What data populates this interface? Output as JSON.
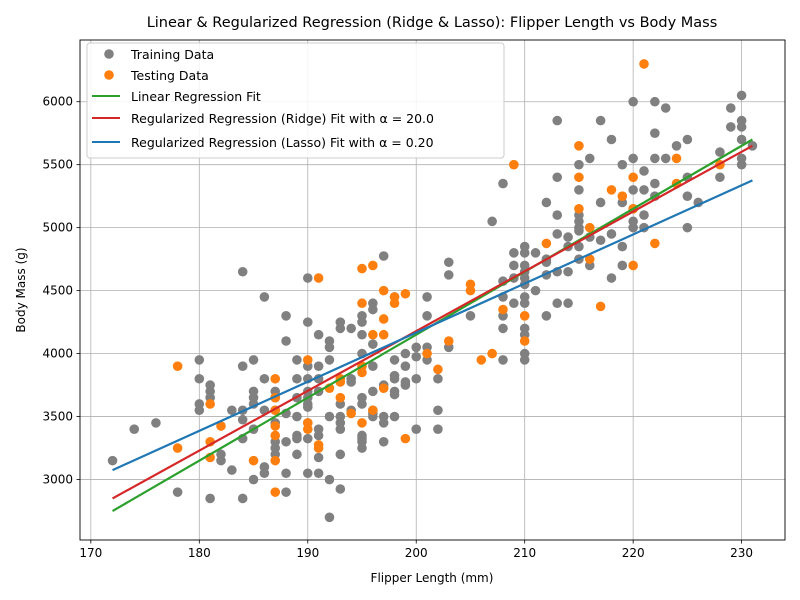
{
  "chart_data": {
    "type": "scatter",
    "title": "Linear & Regularized Regression (Ridge & Lasso): Flipper Length vs Body Mass",
    "xlabel": "Flipper Length (mm)",
    "ylabel": "Body Mass (g)",
    "xlim": [
      169,
      234
    ],
    "ylim": [
      2520,
      6490
    ],
    "x_ticks": [
      "170",
      "180",
      "190",
      "200",
      "210",
      "220",
      "230"
    ],
    "y_ticks": [
      "3000",
      "3500",
      "4000",
      "4500",
      "5000",
      "5500",
      "6000"
    ],
    "grid": true,
    "legend_position": "top-left",
    "colors": {
      "training": "#808080",
      "testing": "#ff7f0e",
      "linear": "#2ca02c",
      "ridge": "#d62728",
      "lasso": "#1f77b4"
    },
    "series": [
      {
        "name": "Training Data",
        "kind": "scatter",
        "points": [
          [
            172,
            3150
          ],
          [
            174,
            3400
          ],
          [
            176,
            3450
          ],
          [
            178,
            2900
          ],
          [
            180,
            3950
          ],
          [
            180,
            3800
          ],
          [
            180,
            3600
          ],
          [
            180,
            3550
          ],
          [
            181,
            3750
          ],
          [
            181,
            3700
          ],
          [
            181,
            3650
          ],
          [
            181,
            2850
          ],
          [
            182,
            3200
          ],
          [
            182,
            3150
          ],
          [
            183,
            3550
          ],
          [
            183,
            3075
          ],
          [
            184,
            4650
          ],
          [
            184,
            3900
          ],
          [
            184,
            3550
          ],
          [
            184,
            3475
          ],
          [
            184,
            3325
          ],
          [
            184,
            2850
          ],
          [
            185,
            3950
          ],
          [
            185,
            3700
          ],
          [
            185,
            3650
          ],
          [
            185,
            3600
          ],
          [
            185,
            3400
          ],
          [
            185,
            3000
          ],
          [
            186,
            4450
          ],
          [
            186,
            3800
          ],
          [
            186,
            3550
          ],
          [
            186,
            3100
          ],
          [
            186,
            3050
          ],
          [
            187,
            3700
          ],
          [
            187,
            3650
          ],
          [
            187,
            3550
          ],
          [
            187,
            3450
          ],
          [
            187,
            3300
          ],
          [
            187,
            3250
          ],
          [
            187,
            3200
          ],
          [
            188,
            4300
          ],
          [
            188,
            4100
          ],
          [
            188,
            3525
          ],
          [
            188,
            3300
          ],
          [
            188,
            3050
          ],
          [
            188,
            2900
          ],
          [
            189,
            3950
          ],
          [
            189,
            3800
          ],
          [
            189,
            3650
          ],
          [
            189,
            3500
          ],
          [
            189,
            3350
          ],
          [
            189,
            3325
          ],
          [
            189,
            3200
          ],
          [
            190,
            4600
          ],
          [
            190,
            4250
          ],
          [
            190,
            3900
          ],
          [
            190,
            3800
          ],
          [
            190,
            3700
          ],
          [
            190,
            3650
          ],
          [
            190,
            3600
          ],
          [
            190,
            3575
          ],
          [
            190,
            3450
          ],
          [
            190,
            3325
          ],
          [
            190,
            3050
          ],
          [
            191,
            4150
          ],
          [
            191,
            3900
          ],
          [
            191,
            3800
          ],
          [
            191,
            3700
          ],
          [
            191,
            3400
          ],
          [
            191,
            3350
          ],
          [
            191,
            3175
          ],
          [
            191,
            3050
          ],
          [
            192,
            4100
          ],
          [
            192,
            4050
          ],
          [
            192,
            3950
          ],
          [
            192,
            3500
          ],
          [
            192,
            3000
          ],
          [
            192,
            2700
          ],
          [
            193,
            4250
          ],
          [
            193,
            4200
          ],
          [
            193,
            3600
          ],
          [
            193,
            3500
          ],
          [
            193,
            3450
          ],
          [
            193,
            3400
          ],
          [
            193,
            3200
          ],
          [
            193,
            2925
          ],
          [
            194,
            4200
          ],
          [
            194,
            3800
          ],
          [
            194,
            3775
          ],
          [
            194,
            3550
          ],
          [
            195,
            4300
          ],
          [
            195,
            4250
          ],
          [
            195,
            4150
          ],
          [
            195,
            4000
          ],
          [
            195,
            3650
          ],
          [
            195,
            3600
          ],
          [
            195,
            3350
          ],
          [
            195,
            3325
          ],
          [
            195,
            3300
          ],
          [
            195,
            3250
          ],
          [
            196,
            4400
          ],
          [
            196,
            4350
          ],
          [
            196,
            4075
          ],
          [
            196,
            3900
          ],
          [
            196,
            3700
          ],
          [
            196,
            3550
          ],
          [
            196,
            3500
          ],
          [
            196,
            3525
          ],
          [
            197,
            4775
          ],
          [
            197,
            3750
          ],
          [
            197,
            3500
          ],
          [
            197,
            3450
          ],
          [
            197,
            3300
          ],
          [
            198,
            4450
          ],
          [
            198,
            3950
          ],
          [
            198,
            3825
          ],
          [
            198,
            3800
          ],
          [
            198,
            3700
          ],
          [
            198,
            3675
          ],
          [
            198,
            3500
          ],
          [
            199,
            4000
          ],
          [
            199,
            3900
          ],
          [
            199,
            3775
          ],
          [
            199,
            3750
          ],
          [
            200,
            4050
          ],
          [
            200,
            3975
          ],
          [
            200,
            3800
          ],
          [
            200,
            3400
          ],
          [
            201,
            4450
          ],
          [
            201,
            4300
          ],
          [
            201,
            4050
          ],
          [
            201,
            3950
          ],
          [
            202,
            3800
          ],
          [
            202,
            3550
          ],
          [
            202,
            3400
          ],
          [
            203,
            4725
          ],
          [
            203,
            4625
          ],
          [
            203,
            4050
          ],
          [
            205,
            4300
          ],
          [
            207,
            5050
          ],
          [
            208,
            5350
          ],
          [
            208,
            4575
          ],
          [
            208,
            4450
          ],
          [
            208,
            4300
          ],
          [
            208,
            4200
          ],
          [
            208,
            3950
          ],
          [
            209,
            4800
          ],
          [
            209,
            4700
          ],
          [
            209,
            4400
          ],
          [
            209,
            4600
          ],
          [
            210,
            4850
          ],
          [
            210,
            4800
          ],
          [
            210,
            4700
          ],
          [
            210,
            4650
          ],
          [
            210,
            4600
          ],
          [
            210,
            4550
          ],
          [
            210,
            4450
          ],
          [
            210,
            4400
          ],
          [
            210,
            4200
          ],
          [
            210,
            4150
          ],
          [
            210,
            4000
          ],
          [
            210,
            3950
          ],
          [
            211,
            4800
          ],
          [
            211,
            4500
          ],
          [
            212,
            5200
          ],
          [
            212,
            4750
          ],
          [
            212,
            4725
          ],
          [
            212,
            4625
          ],
          [
            212,
            4300
          ],
          [
            213,
            5850
          ],
          [
            213,
            5400
          ],
          [
            213,
            5100
          ],
          [
            213,
            4950
          ],
          [
            213,
            4650
          ],
          [
            213,
            4400
          ],
          [
            214,
            4925
          ],
          [
            214,
            4850
          ],
          [
            214,
            4650
          ],
          [
            214,
            4400
          ],
          [
            215,
            5500
          ],
          [
            215,
            5300
          ],
          [
            215,
            5100
          ],
          [
            215,
            5050
          ],
          [
            215,
            5000
          ],
          [
            215,
            4975
          ],
          [
            215,
            4850
          ],
          [
            215,
            4750
          ],
          [
            216,
            5550
          ],
          [
            216,
            4925
          ],
          [
            216,
            4700
          ],
          [
            217,
            5850
          ],
          [
            217,
            5200
          ],
          [
            217,
            4900
          ],
          [
            218,
            5700
          ],
          [
            218,
            4950
          ],
          [
            218,
            4600
          ],
          [
            219,
            5500
          ],
          [
            219,
            5200
          ],
          [
            219,
            4850
          ],
          [
            219,
            4700
          ],
          [
            220,
            6000
          ],
          [
            220,
            5550
          ],
          [
            220,
            5300
          ],
          [
            220,
            5050
          ],
          [
            220,
            5000
          ],
          [
            220,
            5150
          ],
          [
            221,
            5450
          ],
          [
            221,
            5300
          ],
          [
            221,
            5100
          ],
          [
            221,
            5000
          ],
          [
            222,
            6000
          ],
          [
            222,
            5750
          ],
          [
            222,
            5550
          ],
          [
            222,
            5350
          ],
          [
            222,
            5250
          ],
          [
            223,
            5950
          ],
          [
            223,
            5550
          ],
          [
            224,
            5650
          ],
          [
            225,
            5700
          ],
          [
            225,
            5400
          ],
          [
            225,
            5250
          ],
          [
            225,
            5000
          ],
          [
            226,
            5200
          ],
          [
            228,
            5600
          ],
          [
            228,
            5400
          ],
          [
            229,
            5950
          ],
          [
            229,
            5800
          ],
          [
            230,
            6050
          ],
          [
            230,
            5850
          ],
          [
            230,
            5800
          ],
          [
            230,
            5700
          ],
          [
            230,
            5550
          ],
          [
            230,
            5500
          ],
          [
            231,
            5650
          ]
        ]
      },
      {
        "name": "Testing Data",
        "kind": "scatter",
        "points": [
          [
            178,
            3900
          ],
          [
            178,
            3250
          ],
          [
            181,
            3600
          ],
          [
            181,
            3300
          ],
          [
            181,
            3175
          ],
          [
            182,
            3425
          ],
          [
            185,
            3150
          ],
          [
            187,
            3800
          ],
          [
            187,
            3650
          ],
          [
            187,
            3550
          ],
          [
            187,
            3425
          ],
          [
            187,
            3350
          ],
          [
            187,
            3150
          ],
          [
            187,
            2900
          ],
          [
            190,
            3950
          ],
          [
            190,
            3450
          ],
          [
            190,
            3400
          ],
          [
            191,
            4600
          ],
          [
            191,
            3275
          ],
          [
            191,
            3250
          ],
          [
            192,
            3725
          ],
          [
            193,
            3800
          ],
          [
            193,
            3775
          ],
          [
            193,
            3650
          ],
          [
            194,
            3525
          ],
          [
            195,
            4675
          ],
          [
            195,
            4400
          ],
          [
            195,
            3900
          ],
          [
            195,
            3850
          ],
          [
            195,
            3450
          ],
          [
            196,
            4700
          ],
          [
            196,
            4150
          ],
          [
            196,
            3550
          ],
          [
            197,
            4500
          ],
          [
            197,
            4275
          ],
          [
            197,
            4150
          ],
          [
            197,
            3725
          ],
          [
            198,
            4450
          ],
          [
            198,
            4400
          ],
          [
            199,
            4475
          ],
          [
            199,
            3325
          ],
          [
            201,
            4000
          ],
          [
            202,
            3875
          ],
          [
            203,
            4100
          ],
          [
            205,
            4550
          ],
          [
            205,
            4500
          ],
          [
            206,
            3950
          ],
          [
            207,
            4000
          ],
          [
            208,
            4350
          ],
          [
            209,
            5500
          ],
          [
            210,
            4300
          ],
          [
            210,
            4100
          ],
          [
            212,
            4875
          ],
          [
            215,
            5650
          ],
          [
            215,
            5400
          ],
          [
            215,
            5150
          ],
          [
            216,
            5000
          ],
          [
            216,
            4750
          ],
          [
            217,
            4375
          ],
          [
            218,
            5300
          ],
          [
            219,
            5250
          ],
          [
            220,
            5400
          ],
          [
            220,
            5150
          ],
          [
            220,
            4700
          ],
          [
            221,
            6300
          ],
          [
            222,
            4875
          ],
          [
            224,
            5550
          ],
          [
            224,
            5350
          ],
          [
            228,
            5500
          ]
        ]
      },
      {
        "name": "Linear Regression Fit",
        "kind": "line",
        "points": [
          [
            172,
            2750
          ],
          [
            231,
            5700
          ]
        ]
      },
      {
        "name": "Regularized Regression (Ridge) Fit with α = 20.0",
        "kind": "line",
        "points": [
          [
            172,
            2850
          ],
          [
            231,
            5650
          ]
        ]
      },
      {
        "name": "Regularized Regression (Lasso) Fit with α = 0.20",
        "kind": "line",
        "points": [
          [
            172,
            3075
          ],
          [
            231,
            5375
          ]
        ]
      }
    ]
  }
}
